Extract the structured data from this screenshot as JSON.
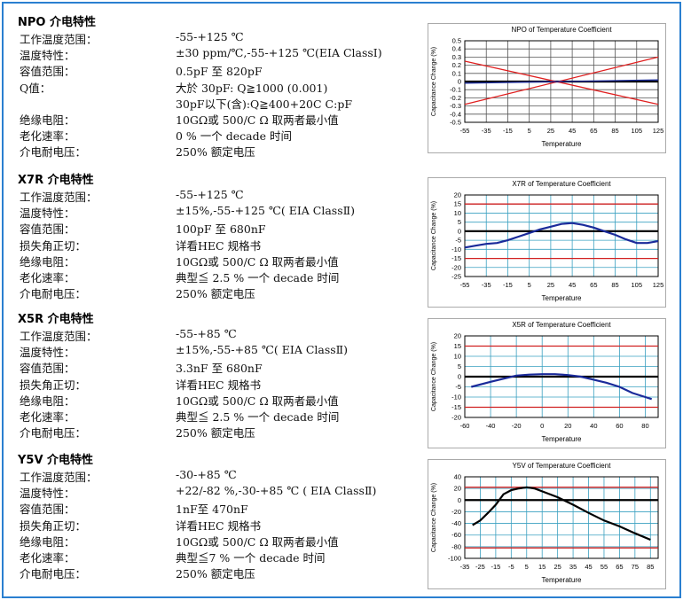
{
  "sections": [
    {
      "title": "NPO 介电特性",
      "rows": [
        {
          "label": "工作温度范围：",
          "value": "-55-+125 ℃"
        },
        {
          "label": "温度特性：",
          "value": "±30 ppm/℃,-55-+125 ℃(EIA ClassⅠ)"
        },
        {
          "label": "容值范围：",
          "value": "0.5pF 至 820pF"
        },
        {
          "label": "Q值：",
          "value": "大於 30pF: Q≧1000 (0.001)"
        },
        {
          "value": "30pF以下(含):Q≧400+20C C:pF"
        },
        {
          "label": "绝缘电阻：",
          "value": "10GΩ或 500/C Ω 取两者最小值"
        },
        {
          "label": "老化速率：",
          "value": "0 % 一个 decade 时间"
        },
        {
          "label": "介电耐电压：",
          "value": "250% 额定电压"
        }
      ]
    },
    {
      "title": "X7R 介电特性",
      "rows": [
        {
          "label": "工作温度范围：",
          "value": "-55-+125 ℃"
        },
        {
          "label": "温度特性：",
          "value": "±15%,-55-+125 ℃( EIA ClassⅡ)"
        },
        {
          "label": "容值范围：",
          "value": "100pF 至 680nF"
        },
        {
          "label": "损失角正切：",
          "value": "详看HEC 规格书"
        },
        {
          "label": "绝缘电阻：",
          "value": "10GΩ或 500/C Ω 取两者最小值"
        },
        {
          "label": "老化速率：",
          "value": "典型≦ 2.5 % 一个 decade 时间"
        },
        {
          "label": "介电耐电压：",
          "value": "250% 额定电压"
        }
      ]
    },
    {
      "title": "X5R 介电特性",
      "rows": [
        {
          "label": "工作温度范围：",
          "value": "-55-+85 ℃"
        },
        {
          "label": "温度特性：",
          "value": "±15%,-55-+85 ℃( EIA ClassⅡ)"
        },
        {
          "label": "容值范围：",
          "value": "3.3nF 至 680nF"
        },
        {
          "label": "损失角正切：",
          "value": "详看HEC 规格书"
        },
        {
          "label": "绝缘电阻：",
          "value": "10GΩ或 500/C Ω 取两者最小值"
        },
        {
          "label": "老化速率：",
          "value": "典型≦ 2.5 % 一个 decade 时间"
        },
        {
          "label": "介电耐电压：",
          "value": "250% 额定电压"
        }
      ]
    },
    {
      "title": "Y5V 介电特性",
      "rows": [
        {
          "label": "工作温度范围：",
          "value": "-30-+85 ℃"
        },
        {
          "label": "温度特性：",
          "value": "+22/-82 %,-30-+85 ℃ ( EIA ClassⅡ)"
        },
        {
          "label": "容值范围：",
          "value": "1nF至 470nF"
        },
        {
          "label": "损失角正切：",
          "value": "详看HEC 规格书"
        },
        {
          "label": "绝缘电阻：",
          "value": "10GΩ或 500/C Ω 取两者最小值"
        },
        {
          "label": "老化速率：",
          "value": "典型≦7 % 一个 decade 时间"
        },
        {
          "label": "介电耐电压：",
          "value": "250% 额定电压"
        }
      ]
    }
  ],
  "chart_data": [
    {
      "type": "line",
      "title": "NPO of Temperature Coefficient",
      "x_label": "Temperature",
      "y_label": "Capacitance Change (%)",
      "xlim": [
        -55,
        125
      ],
      "xticks": [
        -55,
        -35,
        -15,
        5,
        25,
        45,
        65,
        85,
        105,
        125
      ],
      "ylim": [
        -0.5,
        0.5
      ],
      "yticks": [
        -0.5,
        -0.4,
        -0.3,
        -0.2,
        -0.1,
        0,
        0.1,
        0.2,
        0.3,
        0.4,
        0.5
      ],
      "grid": true,
      "grid_color": "#555555",
      "series": [
        {
          "color": "#e02020",
          "x": [
            -55,
            125
          ],
          "values": [
            0.25,
            -0.28
          ]
        },
        {
          "color": "#e02020",
          "x": [
            -55,
            125
          ],
          "values": [
            -0.28,
            0.3
          ]
        },
        {
          "color": "#1a2a9a",
          "x": [
            -55,
            125
          ],
          "values": [
            -0.02,
            0.02
          ]
        }
      ]
    },
    {
      "type": "line",
      "title": "X7R of Temperature Coefficient",
      "x_label": "Temperature",
      "y_label": "Capacitance Change (%)",
      "xlim": [
        -55,
        125
      ],
      "xticks": [
        -55,
        -35,
        -15,
        5,
        25,
        45,
        65,
        85,
        105,
        125
      ],
      "ylim": [
        -25,
        20
      ],
      "yticks": [
        -25,
        -20,
        -15,
        -10,
        -5,
        0,
        5,
        10,
        15,
        20
      ],
      "grid": true,
      "grid_color": "#3aa0c0",
      "series": [
        {
          "color": "#d02020",
          "x": [
            -55,
            125
          ],
          "values": [
            15,
            15
          ]
        },
        {
          "color": "#d02020",
          "x": [
            -55,
            125
          ],
          "values": [
            -15,
            -15
          ]
        },
        {
          "color": "#1a2a9a",
          "x": [
            -55,
            -45,
            -35,
            -25,
            -15,
            -5,
            5,
            15,
            25,
            35,
            45,
            55,
            65,
            75,
            85,
            95,
            105,
            115,
            125
          ],
          "values": [
            -9,
            -8,
            -7,
            -6.5,
            -5,
            -3,
            -1,
            1,
            2.5,
            4,
            4.5,
            3.5,
            2,
            0,
            -2,
            -4.5,
            -6.5,
            -6.5,
            -5.5
          ]
        }
      ]
    },
    {
      "type": "line",
      "title": "X5R of Temperature Coefficient",
      "x_label": "Temperature",
      "y_label": "Capacitance Change (%)",
      "xlim": [
        -60,
        90
      ],
      "xticks": [
        -60,
        -40,
        -20,
        0,
        20,
        40,
        60,
        80
      ],
      "ylim": [
        -20,
        20
      ],
      "yticks": [
        -20,
        -15,
        -10,
        -5,
        0,
        5,
        10,
        15,
        20
      ],
      "grid": true,
      "grid_color": "#3aa0c0",
      "series": [
        {
          "color": "#d02020",
          "x": [
            -60,
            90
          ],
          "values": [
            15,
            15
          ]
        },
        {
          "color": "#d02020",
          "x": [
            -60,
            90
          ],
          "values": [
            -15,
            -15
          ]
        },
        {
          "color": "#1a2a9a",
          "x": [
            -55,
            -40,
            -30,
            -20,
            -10,
            0,
            10,
            20,
            30,
            40,
            50,
            60,
            70,
            80,
            85
          ],
          "values": [
            -5,
            -2.5,
            -1,
            0.5,
            1,
            1.2,
            1.2,
            0.8,
            0,
            -1.5,
            -3,
            -5,
            -8,
            -10,
            -11
          ]
        }
      ]
    },
    {
      "type": "line",
      "title": "Y5V of Temperature Coefficient",
      "x_label": "Temperature",
      "y_label": "Capacitance Change (%)",
      "xlim": [
        -35,
        90
      ],
      "xticks": [
        -35,
        -25,
        -15,
        -5,
        5,
        15,
        25,
        35,
        45,
        55,
        65,
        75,
        85
      ],
      "ylim": [
        -100,
        40
      ],
      "yticks": [
        -100,
        -80,
        -60,
        -40,
        -20,
        0,
        20,
        40
      ],
      "grid": true,
      "grid_color": "#3aa0c0",
      "series": [
        {
          "color": "#d02020",
          "x": [
            -35,
            90
          ],
          "values": [
            22,
            22
          ]
        },
        {
          "color": "#d02020",
          "x": [
            -35,
            90
          ],
          "values": [
            -82,
            -82
          ]
        },
        {
          "color": "#000000",
          "x": [
            -30,
            -25,
            -20,
            -15,
            -10,
            -5,
            0,
            5,
            10,
            15,
            25,
            35,
            45,
            55,
            65,
            75,
            85
          ],
          "values": [
            -43,
            -35,
            -22,
            -8,
            10,
            17,
            20,
            22,
            20,
            15,
            5,
            -8,
            -22,
            -35,
            -45,
            -57,
            -68
          ]
        }
      ]
    }
  ]
}
